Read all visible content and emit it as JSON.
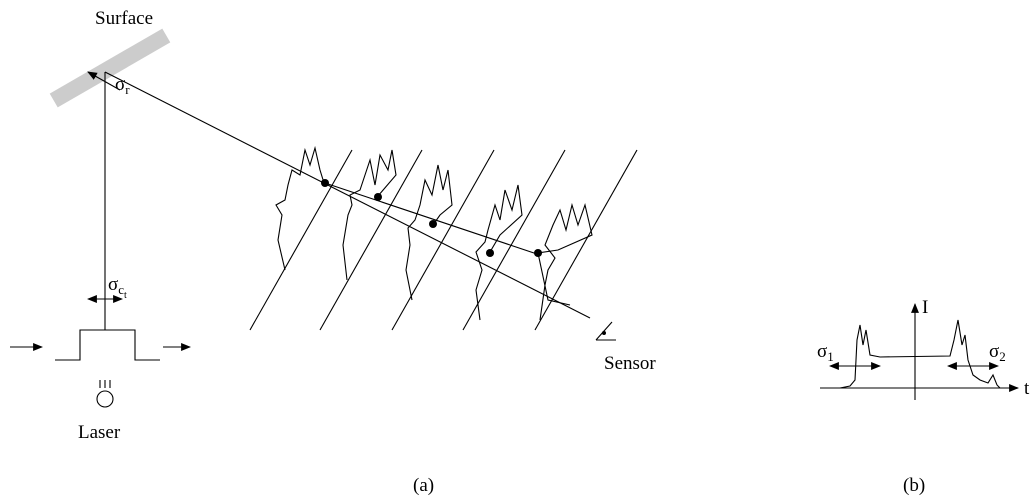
{
  "labels": {
    "surface": "Surface",
    "sensor": "Sensor",
    "laser": "Laser",
    "caption_a": "(a)",
    "caption_b": "(b)"
  },
  "symbols": {
    "sigma_r": {
      "base": "σ",
      "sub": "r"
    },
    "sigma_ct": {
      "base": "σ",
      "sub": "c",
      "subsub": "t"
    },
    "intensity": "I",
    "sigma_1": {
      "base": "σ",
      "sub": "1"
    },
    "sigma_2": {
      "base": "σ",
      "sub": "2"
    },
    "time": "t"
  }
}
